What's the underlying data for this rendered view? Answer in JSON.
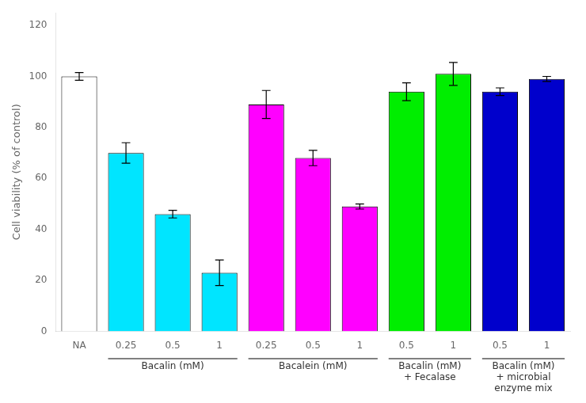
{
  "chart_data": {
    "type": "bar",
    "ylabel": "Cell viability (% of control)",
    "categories": [
      "NA",
      "0.25",
      "0.5",
      "1",
      "0.25",
      "0.5",
      "1",
      "0.5",
      "1",
      "0.5",
      "1"
    ],
    "values": [
      100,
      70,
      46,
      23,
      89,
      68,
      49,
      94,
      101,
      94,
      99
    ],
    "errors": [
      1.5,
      4.0,
      1.5,
      5.0,
      5.5,
      3.0,
      1.0,
      3.5,
      4.5,
      1.5,
      1.0
    ],
    "colors": [
      "#ffffff",
      "#00e5ff",
      "#00e5ff",
      "#00e5ff",
      "#ff00ff",
      "#ff00ff",
      "#ff00ff",
      "#00ee00",
      "#00ee00",
      "#0000cc",
      "#0000cc"
    ],
    "groups": [
      null,
      "Bacalin (mM)",
      "Bacalin (mM)",
      "Bacalin (mM)",
      "Bacalein (mM)",
      "Bacalein (mM)",
      "Bacalein (mM)",
      "Bacalin (mM)\n+ Fecalase",
      "Bacalin (mM)\n+ Fecalase",
      "Bacalin (mM)\n+ microbial\nenzyme mix",
      "Bacalin (mM)\n+ microbial\nenzyme mix"
    ],
    "ylim": [
      0,
      125
    ],
    "yticks": [
      0,
      20,
      40,
      60,
      80,
      100,
      120
    ],
    "grid": false
  }
}
